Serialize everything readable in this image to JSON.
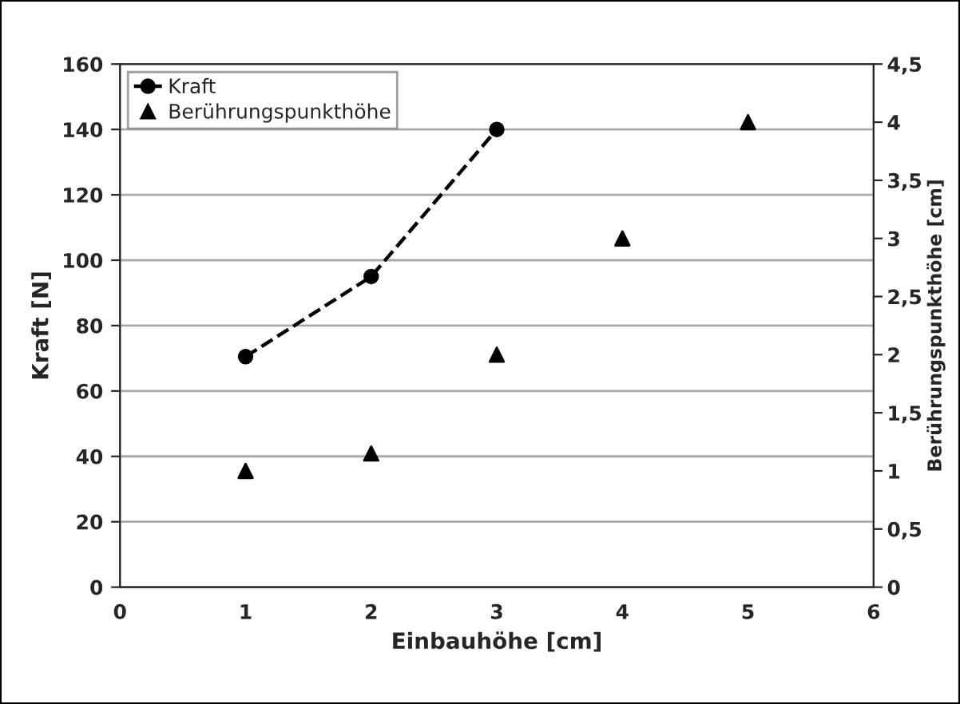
{
  "chart_data": {
    "type": "line",
    "xlabel": "Einbauhöhe [cm]",
    "ylabel": "Kraft [N]",
    "y2label": "Berührungspunkthöhe [cm]",
    "xlim": [
      0,
      6
    ],
    "xticks": [
      0,
      1,
      2,
      3,
      4,
      5,
      6
    ],
    "ylim": [
      0,
      160
    ],
    "yticks": [
      0,
      20,
      40,
      60,
      80,
      100,
      120,
      140,
      160
    ],
    "y2lim": [
      0,
      4.5
    ],
    "y2ticks": [
      0,
      {
        "value": 0.5,
        "label": "0,5"
      },
      1,
      {
        "value": 1.5,
        "label": "1,5"
      },
      2,
      {
        "value": 2.5,
        "label": "2,5"
      },
      3,
      {
        "value": 3.5,
        "label": "3,5"
      },
      4,
      {
        "value": 4.5,
        "label": "4,5"
      }
    ],
    "grid": "y",
    "legend": "top left",
    "series": [
      {
        "name": "Kraft",
        "color": "#000000",
        "marker": "circle",
        "line_style": "dashed",
        "x": [
          1,
          2,
          3
        ],
        "values": [
          70.5,
          95,
          140
        ]
      },
      {
        "name": "Berührungspunkthöhe",
        "type": "scatter",
        "axis": "y2",
        "color": "#000000",
        "marker": "triangle",
        "x": [
          1,
          2,
          3,
          4,
          5
        ],
        "values": [
          1.0,
          1.15,
          2.0,
          3.0,
          4.0
        ]
      }
    ]
  }
}
